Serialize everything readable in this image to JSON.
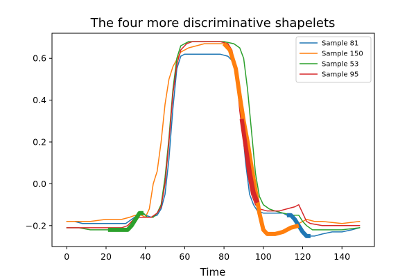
{
  "chart_data": {
    "type": "line",
    "title": "The four more discriminative shapelets",
    "xlabel": "Time",
    "ylabel": "",
    "xlim": [
      -7.5,
      156.5
    ],
    "ylim": [
      -0.3,
      0.72
    ],
    "xticks": [
      0,
      20,
      40,
      60,
      80,
      100,
      120,
      140
    ],
    "yticks": [
      -0.2,
      0.0,
      0.2,
      0.4,
      0.6
    ],
    "ytick_labels": [
      "−0.2",
      "0.0",
      "0.2",
      "0.4",
      "0.6"
    ],
    "grid": false,
    "legend_position": "top-right",
    "series": [
      {
        "name": "Sample 81",
        "color": "#1f77b4",
        "points": [
          [
            0,
            -0.18
          ],
          [
            4,
            -0.18
          ],
          [
            8,
            -0.19
          ],
          [
            14,
            -0.19
          ],
          [
            20,
            -0.19
          ],
          [
            26,
            -0.19
          ],
          [
            30,
            -0.19
          ],
          [
            33,
            -0.17
          ],
          [
            36,
            -0.15
          ],
          [
            38,
            -0.14
          ],
          [
            40,
            -0.15
          ],
          [
            43,
            -0.16
          ],
          [
            46,
            -0.15
          ],
          [
            48,
            -0.12
          ],
          [
            50,
            -0.05
          ],
          [
            52,
            0.12
          ],
          [
            54,
            0.36
          ],
          [
            56,
            0.55
          ],
          [
            58,
            0.61
          ],
          [
            60,
            0.62
          ],
          [
            70,
            0.62
          ],
          [
            78,
            0.62
          ],
          [
            82,
            0.61
          ],
          [
            85,
            0.58
          ],
          [
            87,
            0.48
          ],
          [
            89,
            0.3
          ],
          [
            91,
            0.1
          ],
          [
            93,
            -0.05
          ],
          [
            95,
            -0.1
          ],
          [
            97,
            -0.13
          ],
          [
            100,
            -0.14
          ],
          [
            105,
            -0.14
          ],
          [
            110,
            -0.14
          ],
          [
            112,
            -0.15
          ],
          [
            114,
            -0.15
          ],
          [
            116,
            -0.17
          ],
          [
            118,
            -0.2
          ],
          [
            120,
            -0.23
          ],
          [
            123,
            -0.25
          ],
          [
            126,
            -0.25
          ],
          [
            130,
            -0.24
          ],
          [
            135,
            -0.23
          ],
          [
            140,
            -0.23
          ],
          [
            145,
            -0.22
          ],
          [
            149,
            -0.21
          ]
        ],
        "highlight": [
          [
            112,
            -0.15
          ],
          [
            114,
            -0.15
          ],
          [
            116,
            -0.17
          ],
          [
            118,
            -0.2
          ],
          [
            120,
            -0.23
          ],
          [
            122,
            -0.25
          ],
          [
            124,
            -0.25
          ]
        ]
      },
      {
        "name": "Sample 150",
        "color": "#ff7f0e",
        "points": [
          [
            0,
            -0.18
          ],
          [
            6,
            -0.18
          ],
          [
            12,
            -0.18
          ],
          [
            20,
            -0.17
          ],
          [
            28,
            -0.17
          ],
          [
            32,
            -0.16
          ],
          [
            35,
            -0.15
          ],
          [
            38,
            -0.15
          ],
          [
            40,
            -0.16
          ],
          [
            42,
            -0.12
          ],
          [
            44,
            0.0
          ],
          [
            46,
            0.06
          ],
          [
            48,
            0.2
          ],
          [
            50,
            0.38
          ],
          [
            52,
            0.5
          ],
          [
            54,
            0.56
          ],
          [
            58,
            0.63
          ],
          [
            62,
            0.65
          ],
          [
            66,
            0.66
          ],
          [
            70,
            0.67
          ],
          [
            78,
            0.67
          ],
          [
            82,
            0.67
          ],
          [
            84,
            0.62
          ],
          [
            86,
            0.55
          ],
          [
            88,
            0.42
          ],
          [
            90,
            0.3
          ],
          [
            92,
            0.2
          ],
          [
            94,
            0.08
          ],
          [
            96,
            -0.03
          ],
          [
            98,
            -0.14
          ],
          [
            100,
            -0.22
          ],
          [
            102,
            -0.24
          ],
          [
            106,
            -0.24
          ],
          [
            110,
            -0.23
          ],
          [
            114,
            -0.21
          ],
          [
            118,
            -0.19
          ],
          [
            122,
            -0.17
          ],
          [
            126,
            -0.18
          ],
          [
            130,
            -0.18
          ],
          [
            140,
            -0.19
          ],
          [
            149,
            -0.18
          ]
        ],
        "highlight": [
          [
            80,
            0.67
          ],
          [
            83,
            0.64
          ],
          [
            86,
            0.55
          ],
          [
            88,
            0.42
          ],
          [
            90,
            0.3
          ],
          [
            92,
            0.2
          ],
          [
            94,
            0.08
          ],
          [
            96,
            -0.03
          ],
          [
            98,
            -0.14
          ],
          [
            100,
            -0.22
          ],
          [
            102,
            -0.24
          ],
          [
            106,
            -0.24
          ],
          [
            110,
            -0.23
          ],
          [
            114,
            -0.21
          ],
          [
            118,
            -0.2
          ]
        ]
      },
      {
        "name": "Sample 53",
        "color": "#2ca02c",
        "points": [
          [
            0,
            -0.21
          ],
          [
            6,
            -0.21
          ],
          [
            12,
            -0.22
          ],
          [
            18,
            -0.22
          ],
          [
            24,
            -0.22
          ],
          [
            30,
            -0.22
          ],
          [
            33,
            -0.2
          ],
          [
            35,
            -0.17
          ],
          [
            37,
            -0.14
          ],
          [
            39,
            -0.14
          ],
          [
            41,
            -0.16
          ],
          [
            44,
            -0.16
          ],
          [
            46,
            -0.14
          ],
          [
            48,
            -0.1
          ],
          [
            50,
            0.03
          ],
          [
            52,
            0.22
          ],
          [
            54,
            0.45
          ],
          [
            56,
            0.6
          ],
          [
            58,
            0.66
          ],
          [
            62,
            0.68
          ],
          [
            70,
            0.68
          ],
          [
            80,
            0.68
          ],
          [
            85,
            0.67
          ],
          [
            88,
            0.65
          ],
          [
            90,
            0.6
          ],
          [
            92,
            0.45
          ],
          [
            94,
            0.25
          ],
          [
            96,
            0.05
          ],
          [
            98,
            -0.06
          ],
          [
            100,
            -0.1
          ],
          [
            103,
            -0.12
          ],
          [
            106,
            -0.13
          ],
          [
            110,
            -0.14
          ],
          [
            115,
            -0.15
          ],
          [
            118,
            -0.15
          ],
          [
            120,
            -0.18
          ],
          [
            122,
            -0.2
          ],
          [
            125,
            -0.22
          ],
          [
            130,
            -0.22
          ],
          [
            140,
            -0.22
          ],
          [
            149,
            -0.21
          ]
        ],
        "highlight": [
          [
            21,
            -0.22
          ],
          [
            24,
            -0.22
          ],
          [
            27,
            -0.22
          ],
          [
            31,
            -0.22
          ],
          [
            33,
            -0.2
          ],
          [
            35,
            -0.17
          ],
          [
            37,
            -0.14
          ],
          [
            39,
            -0.14
          ]
        ]
      },
      {
        "name": "Sample 95",
        "color": "#d62728",
        "points": [
          [
            0,
            -0.21
          ],
          [
            6,
            -0.21
          ],
          [
            12,
            -0.21
          ],
          [
            20,
            -0.21
          ],
          [
            28,
            -0.21
          ],
          [
            31,
            -0.2
          ],
          [
            34,
            -0.17
          ],
          [
            37,
            -0.16
          ],
          [
            40,
            -0.16
          ],
          [
            43,
            -0.16
          ],
          [
            46,
            -0.14
          ],
          [
            48,
            -0.11
          ],
          [
            50,
            0.0
          ],
          [
            52,
            0.2
          ],
          [
            54,
            0.43
          ],
          [
            56,
            0.57
          ],
          [
            58,
            0.64
          ],
          [
            61,
            0.67
          ],
          [
            64,
            0.68
          ],
          [
            70,
            0.68
          ],
          [
            78,
            0.68
          ],
          [
            82,
            0.67
          ],
          [
            84,
            0.64
          ],
          [
            86,
            0.55
          ],
          [
            88,
            0.35
          ],
          [
            90,
            0.2
          ],
          [
            92,
            0.05
          ],
          [
            94,
            -0.05
          ],
          [
            96,
            -0.1
          ],
          [
            98,
            -0.12
          ],
          [
            102,
            -0.13
          ],
          [
            108,
            -0.13
          ],
          [
            112,
            -0.12
          ],
          [
            116,
            -0.11
          ],
          [
            118,
            -0.1
          ],
          [
            120,
            -0.14
          ],
          [
            122,
            -0.18
          ],
          [
            124,
            -0.19
          ],
          [
            130,
            -0.2
          ],
          [
            140,
            -0.2
          ],
          [
            149,
            -0.2
          ]
        ],
        "highlight": [
          [
            89,
            0.31
          ],
          [
            91,
            0.18
          ],
          [
            93,
            0.06
          ],
          [
            95,
            -0.04
          ],
          [
            97,
            -0.09
          ]
        ]
      }
    ]
  }
}
